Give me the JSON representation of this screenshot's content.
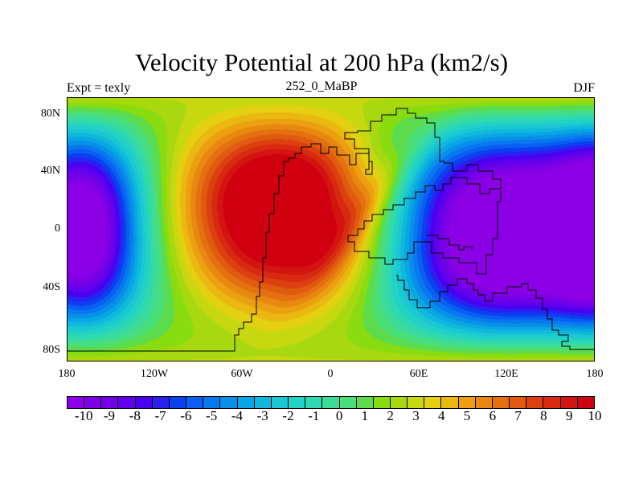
{
  "title": "Velocity Potential at 200 hPa (km2/s)",
  "subtitle_left": "Expt = texly",
  "subtitle_center": "252_0_MaBP",
  "subtitle_right": "DJF",
  "y_ticks": [
    "80N",
    "40N",
    "0",
    "40S",
    "80S"
  ],
  "x_ticks": [
    "180",
    "120W",
    "60W",
    "0",
    "60E",
    "120E",
    "180"
  ],
  "colorbar": {
    "labels": [
      "-10",
      "-9",
      "-8",
      "-7",
      "-6",
      "-5",
      "-4",
      "-3",
      "-2",
      "-1",
      "0",
      "1",
      "2",
      "3",
      "4",
      "5",
      "6",
      "7",
      "8",
      "9",
      "10"
    ],
    "colors": [
      "#8c00e6",
      "#7f00e6",
      "#7200e6",
      "#6000ee",
      "#4a00f0",
      "#2a20f2",
      "#0a40f0",
      "#0a5ef2",
      "#0878f0",
      "#0890e8",
      "#08a6e4",
      "#10b8dc",
      "#1ac8d2",
      "#22d2c6",
      "#2ed8b0",
      "#3cdc98",
      "#4ade78",
      "#5cdc4c",
      "#88dc10",
      "#a8d810",
      "#c8d810",
      "#e4d010",
      "#eab810",
      "#eca010",
      "#e88810",
      "#e47010",
      "#e05a10",
      "#dc4010",
      "#d82a10",
      "#d41410",
      "#d00010"
    ]
  },
  "chart_data": {
    "type": "heatmap",
    "title": "Velocity Potential at 200 hPa (km2/s)",
    "variable": "velocity potential",
    "level": "200 hPa",
    "units": "km2/s",
    "season": "DJF",
    "experiment": "texly",
    "period": "252_0_MaBP",
    "x_range": [
      -180,
      180
    ],
    "y_range": [
      -90,
      90
    ],
    "value_range": [
      -10,
      10
    ],
    "contour_interval": 1,
    "centers": [
      {
        "name": "maximum",
        "lon": -30,
        "lat": 20,
        "value": 10
      },
      {
        "name": "minimum",
        "lon": 110,
        "lat": -5,
        "value": -10
      },
      {
        "name": "minimum",
        "lon": -170,
        "lat": 0,
        "value": -10
      }
    ]
  }
}
